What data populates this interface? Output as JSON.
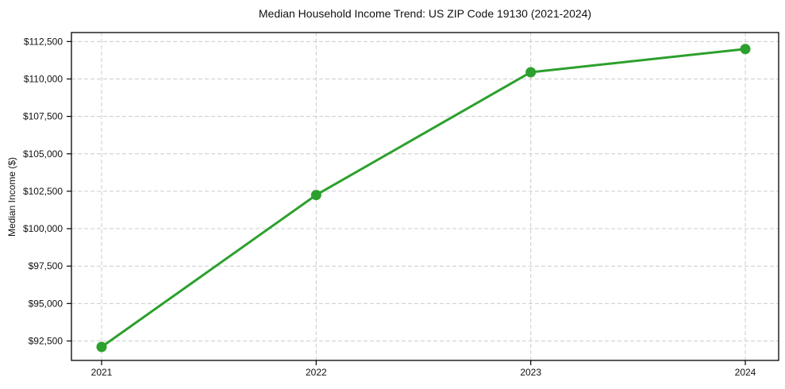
{
  "chart_data": {
    "type": "line",
    "title": "Median Household Income Trend: US ZIP Code 19130 (2021-2024)",
    "xlabel": "",
    "ylabel": "Median Income ($)",
    "categories": [
      "2021",
      "2022",
      "2023",
      "2024"
    ],
    "series": [
      {
        "name": "Median Household Income",
        "values": [
          92100,
          102250,
          110450,
          112000
        ],
        "color": "#2ca02c",
        "marker": "circle"
      }
    ],
    "ylim": [
      91200,
      113100
    ],
    "yticks": [
      {
        "value": 92500,
        "label": "$92,500"
      },
      {
        "value": 95000,
        "label": "$95,000"
      },
      {
        "value": 97500,
        "label": "$97,500"
      },
      {
        "value": 100000,
        "label": "$100,000"
      },
      {
        "value": 102500,
        "label": "$102,500"
      },
      {
        "value": 105000,
        "label": "$105,000"
      },
      {
        "value": 107500,
        "label": "$107,500"
      },
      {
        "value": 110000,
        "label": "$110,000"
      },
      {
        "value": 112500,
        "label": "$112,500"
      }
    ],
    "grid": true,
    "grid_style": "dashed",
    "grid_color": "#cccccc",
    "legend": "none",
    "spine_color": "#000000",
    "tick_color": "#000000",
    "text_color": "#111111",
    "background": "#ffffff"
  }
}
